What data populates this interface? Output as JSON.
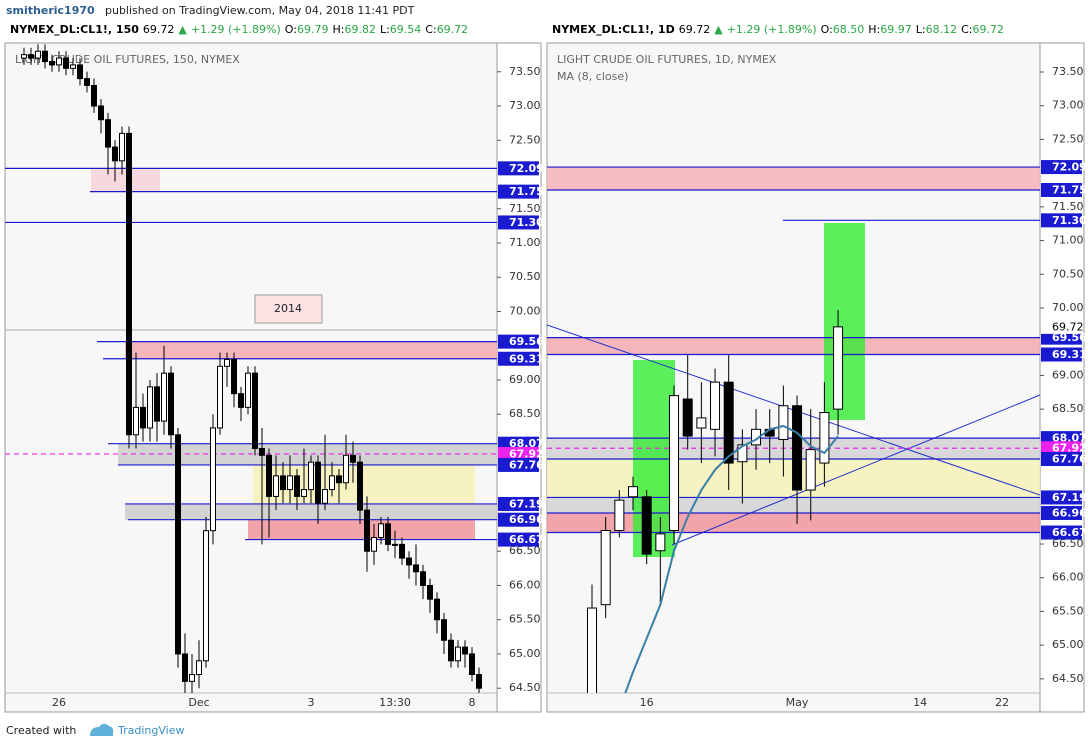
{
  "header": {
    "author": "smitheric1970",
    "published": "published on TradingView.com, May 04, 2018 11:41 PDT"
  },
  "footer": {
    "created": "Created with",
    "brand": "TradingView"
  },
  "chart_data": [
    {
      "type": "candlestick",
      "header": {
        "symbol": "NYMEX_DL:CL1!, 150",
        "last": "69.72",
        "arrow": "▲",
        "change": "+1.29 (+1.89%)",
        "fields": [
          [
            "O:",
            "69.79"
          ],
          [
            "H:",
            "69.82"
          ],
          [
            "L:",
            "69.54"
          ],
          [
            "C:",
            "69.72"
          ]
        ]
      },
      "title": "LIGHT CRUDE OIL FUTURES, 150, NYMEX",
      "annotation": "2014",
      "categories": [
        null,
        null,
        null,
        null,
        null,
        "26",
        null,
        null,
        null,
        null,
        null,
        null,
        null,
        null,
        null,
        null,
        null,
        null,
        null,
        null,
        null,
        null,
        null,
        null,
        null,
        "Dec",
        null,
        null,
        null,
        null,
        null,
        null,
        null,
        null,
        null,
        null,
        null,
        null,
        null,
        null,
        null,
        "3",
        null,
        null,
        null,
        null,
        null,
        null,
        null,
        null,
        null,
        null,
        null,
        "13:30",
        null,
        null,
        null,
        null,
        null,
        null,
        null,
        null,
        null,
        null,
        "8",
        null
      ],
      "open": [
        73.7,
        73.75,
        73.7,
        73.8,
        73.65,
        73.6,
        73.7,
        73.55,
        73.6,
        73.4,
        73.3,
        73.0,
        72.8,
        72.4,
        72.2,
        72.6,
        68.2,
        68.6,
        68.3,
        68.9,
        68.4,
        69.1,
        68.2,
        65.0,
        64.6,
        64.7,
        64.9,
        66.8,
        68.3,
        69.2,
        69.3,
        68.8,
        68.6,
        69.1,
        68.0,
        67.9,
        67.3,
        67.6,
        67.4,
        67.6,
        67.3,
        67.4,
        67.8,
        67.2,
        67.4,
        67.6,
        67.5,
        67.9,
        67.8,
        67.1,
        66.5,
        66.7,
        66.9,
        66.6,
        66.6,
        66.4,
        66.3,
        66.2,
        66.0,
        65.8,
        65.5,
        65.2,
        64.9,
        65.1,
        65.0,
        64.7
      ],
      "high": [
        73.85,
        73.85,
        73.9,
        73.9,
        73.75,
        73.8,
        73.8,
        73.7,
        73.7,
        73.5,
        73.4,
        73.1,
        72.9,
        72.5,
        72.7,
        72.7,
        69.4,
        68.8,
        69.0,
        69.1,
        69.5,
        69.2,
        68.3,
        65.3,
        65.0,
        65.2,
        67.0,
        68.5,
        69.4,
        69.4,
        69.4,
        68.9,
        69.2,
        69.2,
        68.3,
        68.0,
        67.9,
        67.8,
        67.9,
        67.7,
        68.0,
        67.9,
        67.9,
        68.2,
        67.8,
        67.7,
        68.2,
        68.1,
        67.9,
        67.3,
        66.9,
        67.0,
        67.0,
        66.8,
        66.7,
        66.5,
        66.6,
        66.3,
        66.1,
        65.9,
        65.6,
        65.3,
        65.2,
        65.2,
        65.1,
        64.8
      ],
      "low": [
        73.6,
        73.6,
        73.6,
        73.55,
        73.5,
        73.5,
        73.45,
        73.45,
        73.3,
        73.2,
        72.9,
        72.6,
        72.0,
        71.9,
        72.0,
        68.0,
        68.0,
        68.1,
        68.1,
        68.1,
        68.2,
        68.0,
        64.8,
        64.4,
        64.4,
        64.5,
        64.8,
        66.6,
        68.2,
        68.9,
        68.6,
        68.4,
        68.5,
        67.9,
        66.6,
        66.7,
        67.1,
        67.2,
        67.2,
        67.1,
        67.2,
        67.2,
        66.9,
        67.1,
        67.3,
        67.2,
        67.4,
        67.5,
        66.9,
        66.2,
        66.3,
        66.6,
        66.5,
        66.4,
        66.3,
        66.1,
        66.0,
        65.8,
        65.6,
        65.3,
        65.0,
        64.8,
        64.8,
        64.8,
        64.6,
        64.4
      ],
      "close": [
        73.75,
        73.7,
        73.8,
        73.65,
        73.6,
        73.7,
        73.55,
        73.6,
        73.4,
        73.3,
        73.0,
        72.8,
        72.4,
        72.2,
        72.6,
        68.2,
        68.6,
        68.3,
        68.9,
        68.4,
        69.1,
        68.2,
        65.0,
        64.6,
        64.7,
        64.9,
        66.8,
        68.3,
        69.2,
        69.3,
        68.8,
        68.6,
        69.1,
        68.0,
        67.9,
        67.3,
        67.6,
        67.4,
        67.6,
        67.3,
        67.4,
        67.8,
        67.2,
        67.4,
        67.6,
        67.5,
        67.9,
        67.8,
        67.1,
        66.5,
        66.7,
        66.9,
        66.6,
        66.6,
        66.4,
        66.3,
        66.2,
        66.0,
        65.8,
        65.5,
        65.2,
        64.9,
        65.1,
        65.0,
        64.7,
        64.5
      ],
      "up_color": "#ffffff",
      "down_color": "#000000",
      "levels": [
        {
          "value": 72.09,
          "color": "#1a1ad0"
        },
        {
          "value": 71.75,
          "color": "#1a1ad0"
        },
        {
          "value": 71.3,
          "label": "71.30",
          "color": "#1a1ad0"
        },
        {
          "value": 69.56,
          "color": "#1a1ad0"
        },
        {
          "value": 69.31,
          "color": "#1a1ad0"
        },
        {
          "value": 68.07,
          "color": "#1a1ad0"
        },
        {
          "value": 67.92,
          "color": "#ee22ee",
          "dashed": true
        },
        {
          "value": 67.76,
          "color": "#1a1ad0"
        },
        {
          "value": 67.19,
          "color": "#1a1ad0"
        },
        {
          "value": 66.96,
          "color": "#1a1ad0"
        },
        {
          "value": 66.67,
          "color": "#1a1ad0"
        }
      ],
      "lines": [
        69.73
      ],
      "ylim": [
        64.43,
        73.92
      ],
      "yticks": [
        {
          "value": 64.5,
          "label": "64.50"
        },
        {
          "value": 65,
          "label": "65.00"
        },
        {
          "value": 65.5,
          "label": "65.50"
        },
        {
          "value": 66,
          "label": "66.00"
        },
        {
          "value": 66.5,
          "label": "66.50"
        },
        {
          "value": 68.5,
          "label": "68.50"
        },
        {
          "value": 69,
          "label": "69.00"
        },
        {
          "value": 70,
          "label": "70.00"
        },
        {
          "value": 70.5,
          "label": "70.50"
        },
        {
          "value": 71,
          "label": "71.00"
        },
        {
          "value": 71.5,
          "label": "71.50"
        },
        {
          "value": 72.5,
          "label": "72.50"
        },
        {
          "value": 73,
          "label": "73.00"
        },
        {
          "value": 73.5,
          "label": "73.50"
        }
      ]
    },
    {
      "type": "candlestick",
      "header": {
        "symbol": "NYMEX_DL:CL1!, 1D",
        "last": "69.72",
        "arrow": "▲",
        "change": "+1.29 (+1.89%)",
        "fields": [
          [
            "O:",
            "68.50"
          ],
          [
            "H:",
            "69.97"
          ],
          [
            "L:",
            "68.12"
          ],
          [
            "C:",
            "69.72"
          ]
        ]
      },
      "title": "LIGHT CRUDE OIL FUTURES, 1D, NYMEX",
      "categories": [
        null,
        null,
        null,
        null,
        "16",
        null,
        null,
        null,
        null,
        null,
        null,
        null,
        null,
        null,
        null,
        "May",
        null,
        null,
        null,
        null,
        null,
        null,
        null,
        null,
        "14",
        null,
        null,
        null,
        null,
        null,
        "22"
      ],
      "open": [
        64.1,
        65.6,
        66.7,
        67.2,
        67.2,
        66.4,
        66.7,
        68.65,
        68.22,
        68.2,
        68.9,
        67.72,
        67.97,
        68.2,
        68.05,
        68.55,
        67.3,
        67.7,
        68.5,
        null,
        null,
        null,
        null,
        null,
        null,
        null,
        null,
        null,
        null,
        null,
        null
      ],
      "high": [
        65.9,
        66.9,
        67.3,
        67.5,
        67.3,
        66.9,
        68.85,
        69.3,
        68.9,
        69.1,
        69.3,
        68.2,
        68.5,
        68.5,
        68.85,
        68.7,
        68.5,
        68.9,
        69.97,
        null,
        null,
        null,
        null,
        null,
        null,
        null,
        null,
        null,
        null,
        null,
        null
      ],
      "low": [
        64.05,
        65.4,
        66.6,
        67.0,
        66.2,
        65.6,
        66.5,
        67.9,
        67.7,
        67.8,
        67.3,
        67.1,
        67.6,
        67.7,
        67.5,
        66.8,
        66.85,
        67.35,
        68.12,
        null,
        null,
        null,
        null,
        null,
        null,
        null,
        null,
        null,
        null,
        null,
        null
      ],
      "close": [
        65.55,
        66.7,
        67.15,
        67.35,
        66.35,
        66.65,
        68.7,
        68.1,
        68.37,
        68.9,
        67.7,
        67.97,
        68.2,
        68.1,
        68.55,
        67.3,
        67.9,
        68.45,
        69.72,
        null,
        null,
        null,
        null,
        null,
        null,
        null,
        null,
        null,
        null,
        null,
        null
      ],
      "up_color": "#ffffff",
      "down_color": "#000000",
      "ma": {
        "name": "MA (8, close)",
        "color": "#3a7fa8",
        "values": [
          null,
          null,
          64.05,
          64.6,
          65.1,
          65.6,
          66.4,
          66.9,
          67.3,
          67.6,
          67.8,
          67.95,
          68.05,
          68.2,
          68.25,
          68.15,
          67.95,
          67.85,
          68.1,
          null,
          null,
          null,
          null,
          null,
          null,
          null,
          null,
          null,
          null,
          null,
          null
        ]
      },
      "last_price": 69.72,
      "levels": [
        {
          "value": 72.09,
          "color": "#1a1ad0"
        },
        {
          "value": 71.75,
          "color": "#1a1ad0"
        },
        {
          "value": 71.3,
          "label": "71.30",
          "color": "#1a1ad0"
        },
        {
          "value": 69.56,
          "color": "#1a1ad0"
        },
        {
          "value": 69.31,
          "color": "#1a1ad0"
        },
        {
          "value": 68.07,
          "color": "#1a1ad0"
        },
        {
          "value": 67.92,
          "color": "#ee22ee",
          "dashed": true
        },
        {
          "value": 67.76,
          "color": "#1a1ad0"
        },
        {
          "value": 67.19,
          "color": "#1a1ad0"
        },
        {
          "value": 66.96,
          "color": "#1a1ad0"
        },
        {
          "value": 66.67,
          "color": "#1a1ad0"
        }
      ],
      "ylim": [
        64.29,
        73.93
      ],
      "yticks": [
        {
          "value": 64.5,
          "label": "64.50"
        },
        {
          "value": 65,
          "label": "65.00"
        },
        {
          "value": 65.5,
          "label": "65.50"
        },
        {
          "value": 66,
          "label": "66.00"
        },
        {
          "value": 66.5,
          "label": "66.50"
        },
        {
          "value": 68.5,
          "label": "68.50"
        },
        {
          "value": 69,
          "label": "69.00"
        },
        {
          "value": 70,
          "label": "70.00"
        },
        {
          "value": 70.5,
          "label": "70.50"
        },
        {
          "value": 71,
          "label": "71.00"
        },
        {
          "value": 71.5,
          "label": "71.50"
        },
        {
          "value": 72.5,
          "label": "72.50"
        },
        {
          "value": 73,
          "label": "73.00"
        },
        {
          "value": 73.5,
          "label": "73.50"
        }
      ]
    }
  ]
}
